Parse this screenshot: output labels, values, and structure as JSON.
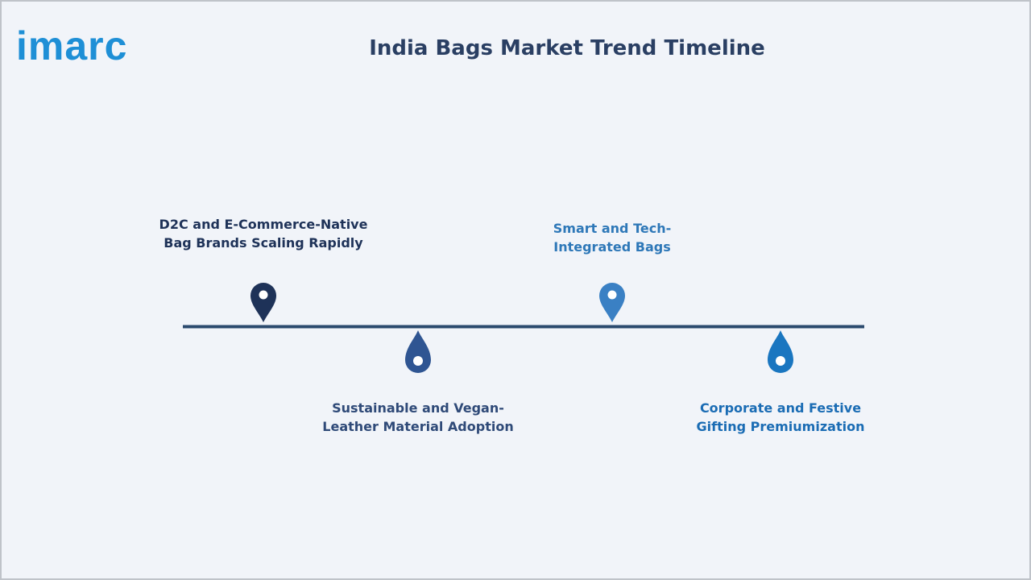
{
  "logo": "imarc",
  "title": "India Bags Market Trend Timeline",
  "items": [
    {
      "lines": [
        "D2C and E-Commerce-Native",
        "Bag Brands Scaling Rapidly"
      ]
    },
    {
      "lines": [
        "Sustainable and Vegan-",
        "Leather Material Adoption"
      ]
    },
    {
      "lines": [
        "Smart and Tech-",
        "Integrated Bags"
      ]
    },
    {
      "lines": [
        "Corporate and Festive",
        "Gifting Premiumization"
      ]
    }
  ]
}
